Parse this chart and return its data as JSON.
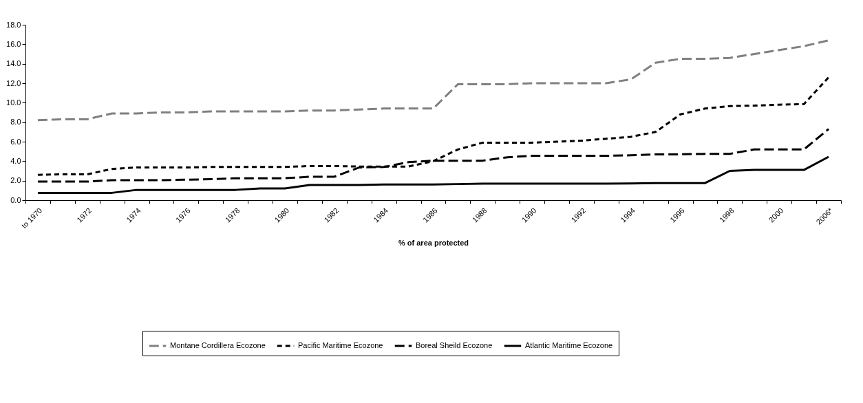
{
  "chart_data": {
    "type": "line",
    "xlabel": "% of area protected",
    "categories": [
      "to 1970",
      null,
      "1972",
      null,
      "1974",
      null,
      "1976",
      null,
      "1978",
      null,
      "1980",
      null,
      "1982",
      null,
      "1984",
      null,
      "1986",
      null,
      "1988",
      null,
      "1990",
      null,
      "1992",
      null,
      "1994",
      null,
      "1996",
      null,
      "1998",
      null,
      "2000",
      null,
      "2006*"
    ],
    "ylim": [
      0,
      18
    ],
    "yticks": [
      {
        "value": 0,
        "label": "0.0"
      },
      {
        "value": 2,
        "label": "2.0"
      },
      {
        "value": 4,
        "label": "4.0"
      },
      {
        "value": 6,
        "label": "6.0"
      },
      {
        "value": 8,
        "label": "8.0"
      },
      {
        "value": 10,
        "label": "10.0"
      },
      {
        "value": 12,
        "label": "12.0"
      },
      {
        "value": 14,
        "label": "14.0"
      },
      {
        "value": 16,
        "label": "16.0"
      },
      {
        "value": 18,
        "label": "18.0"
      }
    ],
    "grid": false,
    "legend": "bottom",
    "marker": "none",
    "series": [
      {
        "name": "Montane Cordillera Ecozone",
        "color": "#808080",
        "line_style": "dashed",
        "values": [
          8.2,
          8.3,
          8.3,
          8.9,
          8.9,
          9.0,
          9.0,
          9.1,
          9.1,
          9.1,
          9.1,
          9.2,
          9.2,
          9.3,
          9.4,
          9.4,
          9.4,
          11.9,
          11.9,
          11.9,
          12.0,
          12.0,
          12.0,
          12.0,
          12.4,
          14.1,
          14.5,
          14.5,
          14.6,
          15.0,
          15.4,
          15.8,
          16.4
        ]
      },
      {
        "name": "Pacific Maritime Ecozone",
        "color": "#000000",
        "line_style": "dashed",
        "values": [
          2.6,
          2.65,
          2.65,
          3.2,
          3.35,
          3.35,
          3.35,
          3.4,
          3.4,
          3.4,
          3.4,
          3.5,
          3.5,
          3.45,
          3.45,
          3.45,
          4.0,
          5.2,
          5.9,
          5.9,
          5.9,
          6.0,
          6.1,
          6.3,
          6.5,
          7.0,
          8.8,
          9.4,
          9.65,
          9.7,
          9.8,
          9.85,
          12.6
        ]
      },
      {
        "name": "Boreal Sheild Ecozone",
        "color": "#000000",
        "line_style": "dashed",
        "values": [
          1.9,
          1.9,
          1.9,
          2.05,
          2.05,
          2.05,
          2.1,
          2.15,
          2.25,
          2.25,
          2.25,
          2.4,
          2.4,
          3.35,
          3.4,
          3.9,
          4.05,
          4.05,
          4.05,
          4.4,
          4.55,
          4.55,
          4.55,
          4.55,
          4.6,
          4.7,
          4.7,
          4.75,
          4.75,
          5.2,
          5.2,
          5.2,
          7.3
        ]
      },
      {
        "name": "Atlantic Maritime Ecozone",
        "color": "#000000",
        "line_style": "solid",
        "values": [
          0.75,
          0.75,
          0.75,
          0.75,
          1.05,
          1.05,
          1.05,
          1.05,
          1.05,
          1.2,
          1.2,
          1.55,
          1.55,
          1.55,
          1.6,
          1.6,
          1.6,
          1.65,
          1.7,
          1.7,
          1.7,
          1.7,
          1.7,
          1.7,
          1.72,
          1.75,
          1.75,
          1.75,
          3.0,
          3.1,
          3.1,
          3.1,
          4.45
        ]
      }
    ]
  }
}
